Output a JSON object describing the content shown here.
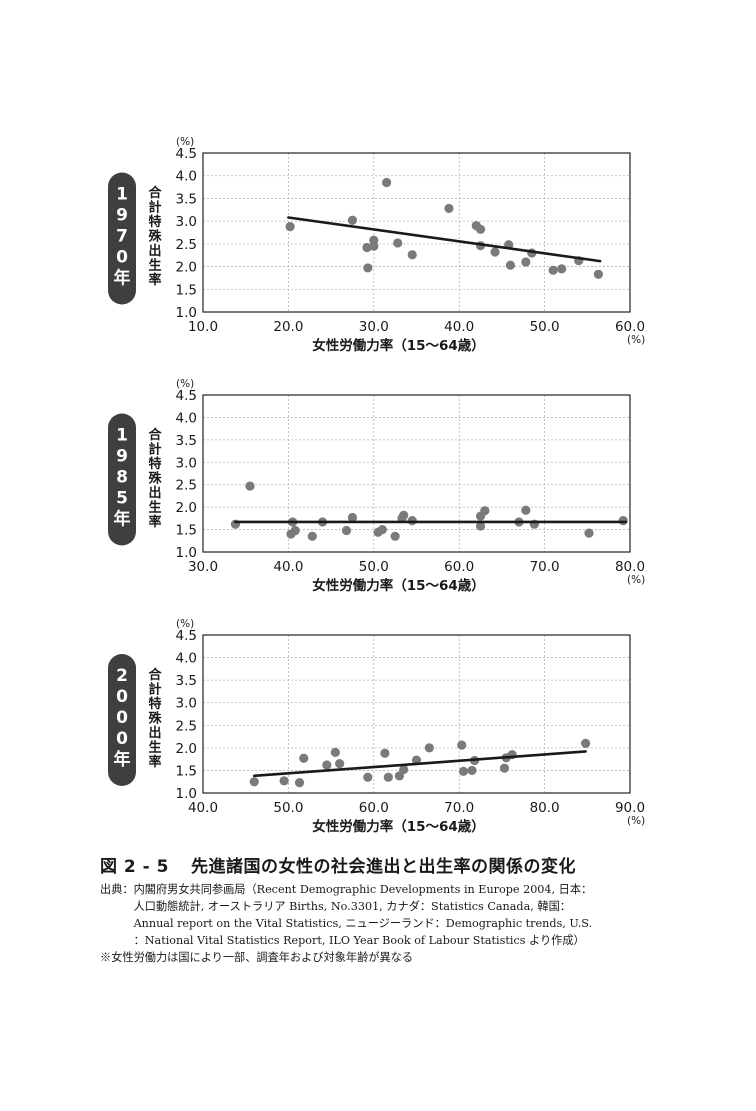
{
  "chart_data": [
    {
      "type": "scatter",
      "year_label": "1970年",
      "xlabel": "女性労働力率（15〜64歳）",
      "ylabel": "合計特殊出生率",
      "y_unit": "(%)",
      "x_unit": "(%)",
      "xlim": [
        10,
        60
      ],
      "ylim": [
        1.0,
        4.5
      ],
      "xticks": [
        "10.0",
        "20.0",
        "30.0",
        "40.0",
        "50.0",
        "60.0"
      ],
      "yticks": [
        "1.0",
        "1.5",
        "2.0",
        "2.5",
        "3.0",
        "3.5",
        "4.0",
        "4.5"
      ],
      "grid": true,
      "trend_line": [
        [
          20.0,
          3.08
        ],
        [
          56.5,
          2.12
        ]
      ],
      "points": [
        [
          20.2,
          2.88
        ],
        [
          27.5,
          3.02
        ],
        [
          29.2,
          2.42
        ],
        [
          29.3,
          1.97
        ],
        [
          30.0,
          2.45
        ],
        [
          30.0,
          2.58
        ],
        [
          31.5,
          3.85
        ],
        [
          32.8,
          2.52
        ],
        [
          34.5,
          2.26
        ],
        [
          38.8,
          3.28
        ],
        [
          42.0,
          2.9
        ],
        [
          42.5,
          2.82
        ],
        [
          42.5,
          2.46
        ],
        [
          44.2,
          2.32
        ],
        [
          45.8,
          2.48
        ],
        [
          46.0,
          2.03
        ],
        [
          47.8,
          2.1
        ],
        [
          48.5,
          2.3
        ],
        [
          51.0,
          1.92
        ],
        [
          52.0,
          1.95
        ],
        [
          54.0,
          2.13
        ],
        [
          56.3,
          1.83
        ]
      ]
    },
    {
      "type": "scatter",
      "year_label": "1985年",
      "xlabel": "女性労働力率（15〜64歳）",
      "ylabel": "合計特殊出生率",
      "y_unit": "(%)",
      "x_unit": "(%)",
      "xlim": [
        30,
        80
      ],
      "ylim": [
        1.0,
        4.5
      ],
      "xticks": [
        "30.0",
        "40.0",
        "50.0",
        "60.0",
        "70.0",
        "80.0"
      ],
      "yticks": [
        "1.0",
        "1.5",
        "2.0",
        "2.5",
        "3.0",
        "3.5",
        "4.0",
        "4.5"
      ],
      "grid": true,
      "trend_line": [
        [
          33.8,
          1.67
        ],
        [
          79.5,
          1.67
        ]
      ],
      "points": [
        [
          33.8,
          1.62
        ],
        [
          35.5,
          2.47
        ],
        [
          40.3,
          1.4
        ],
        [
          40.5,
          1.67
        ],
        [
          40.8,
          1.48
        ],
        [
          42.8,
          1.35
        ],
        [
          44.0,
          1.67
        ],
        [
          46.8,
          1.48
        ],
        [
          47.5,
          1.77
        ],
        [
          50.5,
          1.44
        ],
        [
          51.0,
          1.5
        ],
        [
          52.5,
          1.35
        ],
        [
          53.3,
          1.75
        ],
        [
          53.5,
          1.82
        ],
        [
          54.5,
          1.7
        ],
        [
          62.5,
          1.8
        ],
        [
          62.5,
          1.58
        ],
        [
          63.0,
          1.92
        ],
        [
          67.0,
          1.67
        ],
        [
          67.8,
          1.93
        ],
        [
          68.8,
          1.62
        ],
        [
          75.2,
          1.42
        ],
        [
          79.2,
          1.7
        ]
      ]
    },
    {
      "type": "scatter",
      "year_label": "2000年",
      "xlabel": "女性労働力率（15〜64歳）",
      "ylabel": "合計特殊出生率",
      "y_unit": "(%)",
      "x_unit": "(%)",
      "xlim": [
        40,
        90
      ],
      "ylim": [
        1.0,
        4.5
      ],
      "xticks": [
        "40.0",
        "50.0",
        "60.0",
        "70.0",
        "80.0",
        "90.0"
      ],
      "yticks": [
        "1.0",
        "1.5",
        "2.0",
        "2.5",
        "3.0",
        "3.5",
        "4.0",
        "4.5"
      ],
      "grid": true,
      "trend_line": [
        [
          46.0,
          1.38
        ],
        [
          84.8,
          1.92
        ]
      ],
      "points": [
        [
          46.0,
          1.25
        ],
        [
          49.5,
          1.27
        ],
        [
          51.3,
          1.23
        ],
        [
          51.8,
          1.77
        ],
        [
          54.5,
          1.62
        ],
        [
          55.5,
          1.9
        ],
        [
          56.0,
          1.65
        ],
        [
          59.3,
          1.35
        ],
        [
          61.3,
          1.88
        ],
        [
          61.7,
          1.35
        ],
        [
          63.0,
          1.38
        ],
        [
          63.5,
          1.52
        ],
        [
          65.0,
          1.73
        ],
        [
          66.5,
          2.0
        ],
        [
          70.3,
          2.06
        ],
        [
          70.5,
          1.48
        ],
        [
          71.5,
          1.5
        ],
        [
          71.8,
          1.72
        ],
        [
          75.3,
          1.55
        ],
        [
          75.5,
          1.78
        ],
        [
          76.2,
          1.85
        ],
        [
          84.8,
          2.1
        ]
      ]
    }
  ],
  "caption": {
    "number": "図 2 - 5",
    "title": "先進諸国の女性の社会進出と出生率の関係の変化"
  },
  "source": {
    "head": "出典：",
    "lines": [
      "内閣府男女共同参画局（Recent Demographic Developments in Europe 2004, 日本：",
      "人口動態統計, オーストラリア Births, No.3301, カナダ：Statistics Canada, 韓国：",
      "Annual report on the Vital Statistics, ニュージーランド：Demographic trends, U.S.",
      "：National Vital Statistics Report, ILO Year Book of Labour Statistics より作成）"
    ],
    "note": "※女性労働力は国により一部、調査年および対象年齢が異なる"
  },
  "colors": {
    "point": "#7a7a7a",
    "line": "#1a1a1a",
    "badge": "#3f3f3f",
    "grid": "#b5b5b5"
  }
}
